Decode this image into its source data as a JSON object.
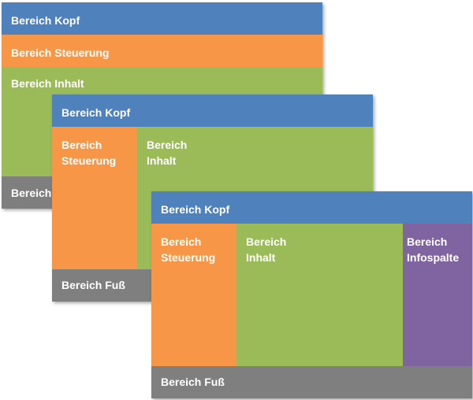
{
  "colors": {
    "kopf": "#4f81bd",
    "steuerung": "#f79646",
    "inhalt": "#9bbb59",
    "infospalte": "#8064a2",
    "fuss": "#7f7f7f"
  },
  "layouts": [
    {
      "kopf": "Bereich Kopf",
      "steuerung": "Bereich Steuerung",
      "inhalt": "Bereich Inhalt",
      "fuss": "Bereich Fuß"
    },
    {
      "kopf": "Bereich Kopf",
      "steuerung": "Bereich\nSteuerung",
      "inhalt": "Bereich\nInhalt",
      "fuss": "Bereich Fuß"
    },
    {
      "kopf": "Bereich Kopf",
      "steuerung": "Bereich\nSteuerung",
      "inhalt": "Bereich\nInhalt",
      "infospalte": "Bereich\nInfospalte",
      "fuss": "Bereich Fuß"
    }
  ]
}
